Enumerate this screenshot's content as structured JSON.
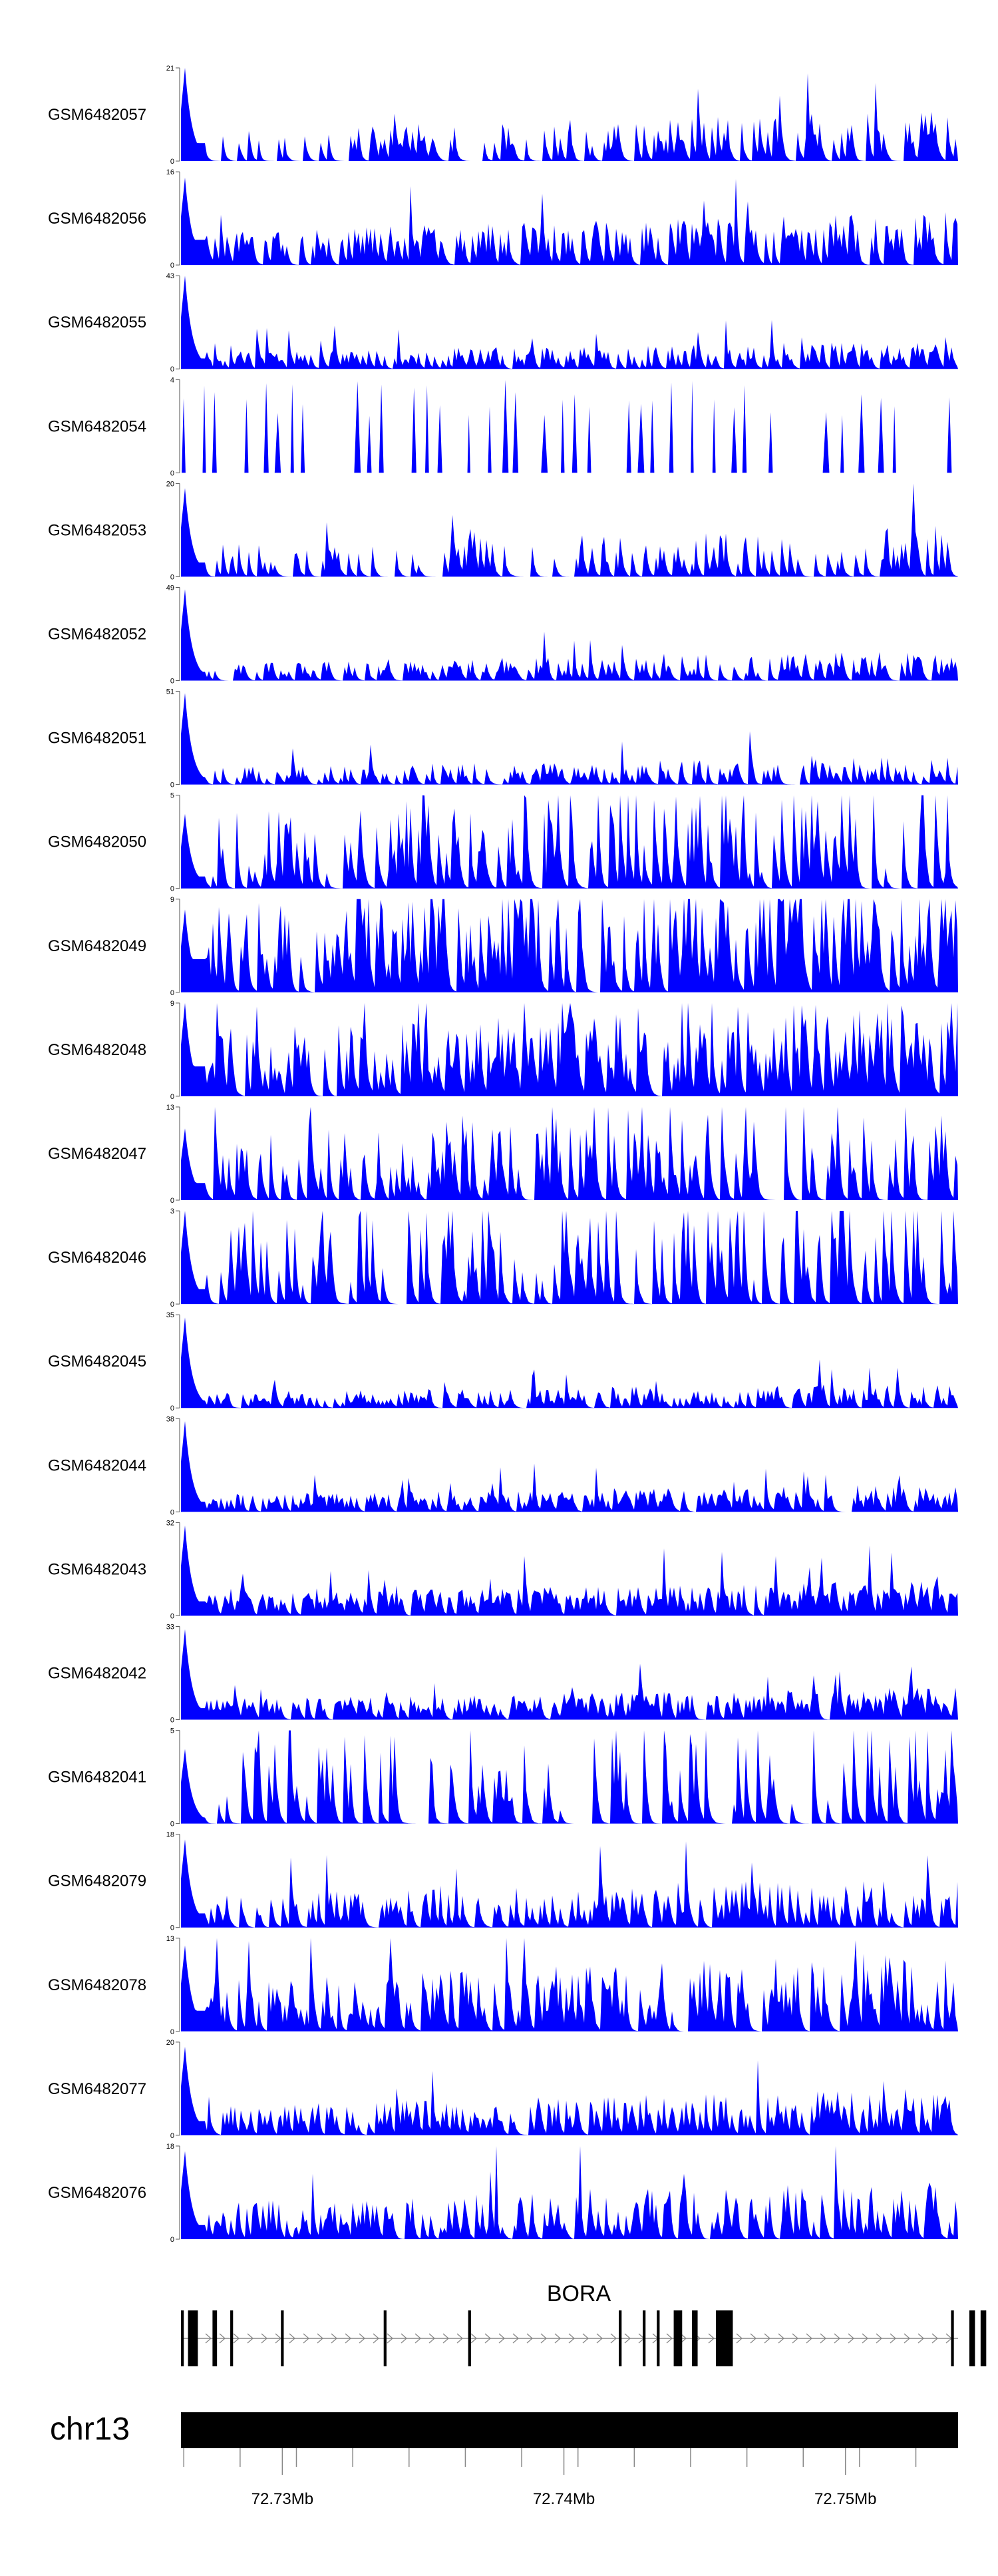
{
  "chart_data": {
    "type": "area",
    "fill_color": "#0000ff",
    "x_range_mb": [
      72.7264,
      72.754
    ],
    "tracks": [
      {
        "name": "GSM6482057",
        "ymax": 21,
        "peak": 21,
        "baseline": 0.12,
        "noise": 0.22,
        "density": 0.35
      },
      {
        "name": "GSM6482056",
        "ymax": 16,
        "peak": 15,
        "baseline": 0.18,
        "noise": 0.18,
        "density": 0.45
      },
      {
        "name": "GSM6482055",
        "ymax": 43,
        "peak": 43,
        "baseline": 0.07,
        "noise": 0.12,
        "density": 0.5
      },
      {
        "name": "GSM6482054",
        "ymax": 4,
        "peak": 4,
        "baseline": 0,
        "noise": 1.0,
        "density": 0.12,
        "sparse": true
      },
      {
        "name": "GSM6482053",
        "ymax": 20,
        "peak": 19,
        "baseline": 0.1,
        "noise": 0.25,
        "density": 0.3
      },
      {
        "name": "GSM6482052",
        "ymax": 49,
        "peak": 48,
        "baseline": 0.06,
        "noise": 0.14,
        "density": 0.45
      },
      {
        "name": "GSM6482051",
        "ymax": 51,
        "peak": 50,
        "baseline": 0.05,
        "noise": 0.14,
        "density": 0.4
      },
      {
        "name": "GSM6482050",
        "ymax": 5,
        "peak": 4,
        "baseline": 0.1,
        "noise": 0.75,
        "density": 0.3
      },
      {
        "name": "GSM6482049",
        "ymax": 9,
        "peak": 8,
        "baseline": 0.25,
        "noise": 0.7,
        "density": 0.45
      },
      {
        "name": "GSM6482048",
        "ymax": 9,
        "peak": 9,
        "baseline": 0.2,
        "noise": 0.5,
        "density": 0.5
      },
      {
        "name": "GSM6482047",
        "ymax": 13,
        "peak": 10,
        "baseline": 0.15,
        "noise": 0.6,
        "density": 0.35
      },
      {
        "name": "GSM6482046",
        "ymax": 3,
        "peak": 3,
        "baseline": 0.1,
        "noise": 0.9,
        "density": 0.3
      },
      {
        "name": "GSM6482045",
        "ymax": 35,
        "peak": 34,
        "baseline": 0.05,
        "noise": 0.12,
        "density": 0.5
      },
      {
        "name": "GSM6482044",
        "ymax": 38,
        "peak": 37,
        "baseline": 0.07,
        "noise": 0.12,
        "density": 0.55
      },
      {
        "name": "GSM6482043",
        "ymax": 32,
        "peak": 31,
        "baseline": 0.1,
        "noise": 0.14,
        "density": 0.6
      },
      {
        "name": "GSM6482042",
        "ymax": 33,
        "peak": 32,
        "baseline": 0.08,
        "noise": 0.14,
        "density": 0.55
      },
      {
        "name": "GSM6482041",
        "ymax": 5,
        "peak": 4,
        "baseline": 0.05,
        "noise": 0.8,
        "density": 0.25
      },
      {
        "name": "GSM6482079",
        "ymax": 18,
        "peak": 17,
        "baseline": 0.1,
        "noise": 0.25,
        "density": 0.4
      },
      {
        "name": "GSM6482078",
        "ymax": 13,
        "peak": 12,
        "baseline": 0.15,
        "noise": 0.4,
        "density": 0.5
      },
      {
        "name": "GSM6482077",
        "ymax": 20,
        "peak": 19,
        "baseline": 0.1,
        "noise": 0.22,
        "density": 0.5
      },
      {
        "name": "GSM6482076",
        "ymax": 18,
        "peak": 17,
        "baseline": 0.1,
        "noise": 0.3,
        "density": 0.45
      }
    ],
    "gene": {
      "name": "BORA",
      "start_mb": 72.7264,
      "end_mb": 72.754,
      "exons_mb": [
        [
          72.7264,
          72.7265
        ],
        [
          72.72665,
          72.727
        ],
        [
          72.72752,
          72.72768
        ],
        [
          72.72815,
          72.72825
        ],
        [
          72.72995,
          72.73005
        ],
        [
          72.7336,
          72.7337
        ],
        [
          72.7366,
          72.7367
        ],
        [
          72.74195,
          72.74205
        ],
        [
          72.7428,
          72.7429
        ],
        [
          72.7433,
          72.7434
        ],
        [
          72.7439,
          72.7442
        ],
        [
          72.74455,
          72.74475
        ],
        [
          72.7454,
          72.746
        ],
        [
          72.75375,
          72.75385
        ],
        [
          72.7544,
          72.7546
        ],
        [
          72.7548,
          72.755
        ]
      ]
    },
    "chromosome": "chr13",
    "x_ticks_mb": [
      72.7265,
      72.7285,
      72.7305,
      72.7325,
      72.7345,
      72.7365,
      72.7385,
      72.7405,
      72.7425,
      72.7445,
      72.7465,
      72.7485,
      72.7505,
      72.7525
    ],
    "x_tick_labels": [
      {
        "mb": 72.73,
        "label": "72.73Mb"
      },
      {
        "mb": 72.74,
        "label": "72.74Mb"
      },
      {
        "mb": 72.75,
        "label": "72.75Mb"
      }
    ]
  }
}
